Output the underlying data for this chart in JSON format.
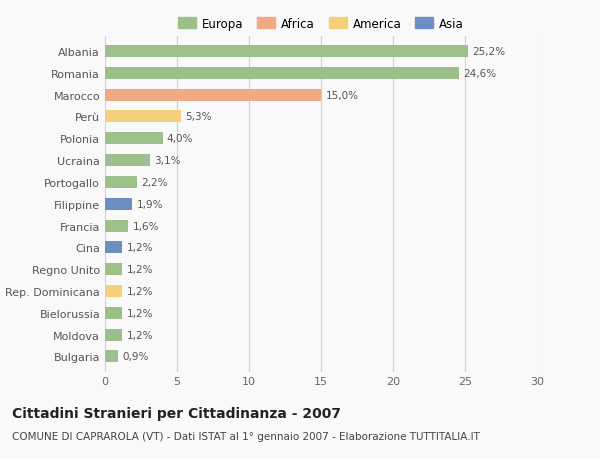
{
  "categories": [
    "Albania",
    "Romania",
    "Marocco",
    "Perù",
    "Polonia",
    "Ucraina",
    "Portogallo",
    "Filippine",
    "Francia",
    "Cina",
    "Regno Unito",
    "Rep. Dominicana",
    "Bielorussia",
    "Moldova",
    "Bulgaria"
  ],
  "values": [
    25.2,
    24.6,
    15.0,
    5.3,
    4.0,
    3.1,
    2.2,
    1.9,
    1.6,
    1.2,
    1.2,
    1.2,
    1.2,
    1.2,
    0.9
  ],
  "labels": [
    "25,2%",
    "24,6%",
    "15,0%",
    "5,3%",
    "4,0%",
    "3,1%",
    "2,2%",
    "1,9%",
    "1,6%",
    "1,2%",
    "1,2%",
    "1,2%",
    "1,2%",
    "1,2%",
    "0,9%"
  ],
  "continents": [
    "Europa",
    "Europa",
    "Africa",
    "America",
    "Europa",
    "Europa",
    "Europa",
    "Asia",
    "Europa",
    "Asia",
    "Europa",
    "America",
    "Europa",
    "Europa",
    "Europa"
  ],
  "colors": {
    "Europa": "#9dc08b",
    "Africa": "#f0a982",
    "America": "#f5d07a",
    "Asia": "#6b8fc2"
  },
  "legend_order": [
    "Europa",
    "Africa",
    "America",
    "Asia"
  ],
  "xlim": [
    0,
    30
  ],
  "xticks": [
    0,
    5,
    10,
    15,
    20,
    25,
    30
  ],
  "title": "Cittadini Stranieri per Cittadinanza - 2007",
  "subtitle": "COMUNE DI CAPRAROLA (VT) - Dati ISTAT al 1° gennaio 2007 - Elaborazione TUTTITALIA.IT",
  "background_color": "#f9f9f9",
  "grid_color": "#d0d0d0",
  "bar_height": 0.55,
  "title_fontsize": 10,
  "subtitle_fontsize": 7.5,
  "label_fontsize": 7.5,
  "tick_fontsize": 8,
  "legend_fontsize": 8.5
}
